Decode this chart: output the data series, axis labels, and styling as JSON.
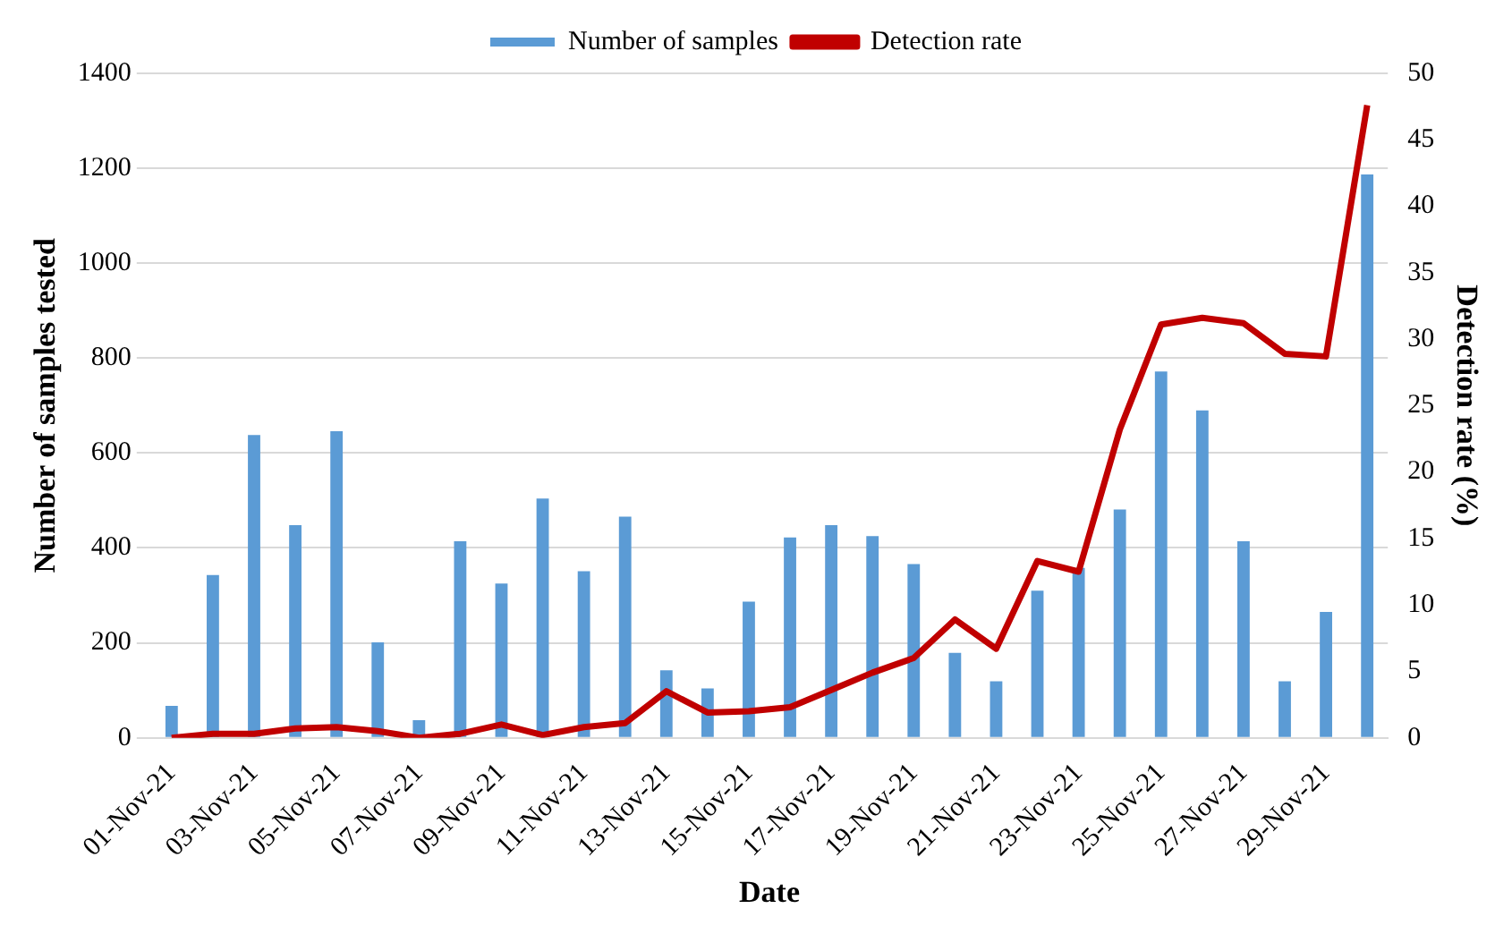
{
  "chart_data": {
    "type": "bar",
    "xlabel": "Date",
    "ylabel": "Number of samples tested",
    "y2label": "Detection rate (%)",
    "categories": [
      "01-Nov-21",
      null,
      "03-Nov-21",
      null,
      "05-Nov-21",
      null,
      "07-Nov-21",
      null,
      "09-Nov-21",
      null,
      "11-Nov-21",
      null,
      "13-Nov-21",
      null,
      "15-Nov-21",
      null,
      "17-Nov-21",
      null,
      "19-Nov-21",
      null,
      "21-Nov-21",
      null,
      "23-Nov-21",
      null,
      "25-Nov-21",
      null,
      "27-Nov-21",
      null,
      "29-Nov-21",
      null
    ],
    "series": [
      {
        "name": "Number of samples",
        "color": "#5b9bd5",
        "values": [
          67,
          343,
          638,
          448,
          646,
          201,
          37,
          414,
          325,
          504,
          351,
          466,
          142,
          104,
          287,
          422,
          448,
          425,
          366,
          179,
          119,
          310,
          358,
          481,
          772,
          690,
          414,
          119,
          265,
          1187
        ]
      },
      {
        "name": "Detection rate",
        "type": "line",
        "axis": "y2",
        "color": "#c00000",
        "marker": "none",
        "values": [
          0,
          0.3,
          0.3,
          0.7,
          0.8,
          0.5,
          0,
          0.3,
          1,
          0.2,
          0.8,
          1.1,
          3.5,
          1.9,
          2.0,
          2.3,
          3.6,
          4.9,
          6.0,
          8.9,
          6.7,
          13.3,
          12.5,
          23.2,
          31.1,
          31.6,
          31.2,
          28.9,
          28.7,
          47.6
        ]
      }
    ],
    "ylim": [
      0,
      1400
    ],
    "yticks": [
      0,
      200,
      400,
      600,
      800,
      1000,
      1200,
      1400
    ],
    "y2lim": [
      0,
      50
    ],
    "y2ticks": [
      0,
      5,
      10,
      15,
      20,
      25,
      30,
      35,
      40,
      45,
      50
    ],
    "grid": "y",
    "legend": "top"
  }
}
